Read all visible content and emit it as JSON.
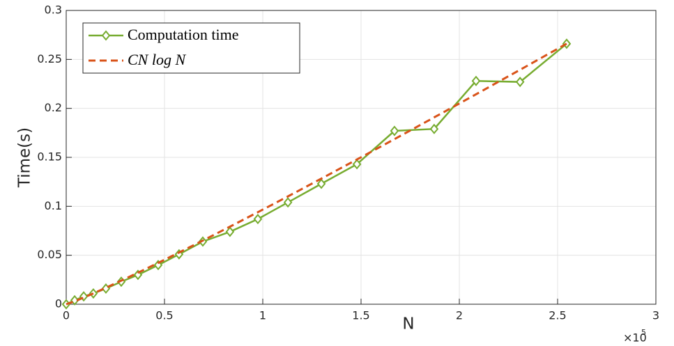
{
  "chart_data": {
    "type": "line",
    "x_label": "N",
    "y_label": "Time(s)",
    "x_scale_label": "×10",
    "x_scale_exponent": 5,
    "x": [
      0,
      0.043,
      0.089,
      0.138,
      0.202,
      0.28,
      0.365,
      0.468,
      0.574,
      0.695,
      0.833,
      0.975,
      1.128,
      1.298,
      1.479,
      1.67,
      1.872,
      2.085,
      2.309,
      2.546
    ],
    "series": [
      {
        "name": "Computation time",
        "color": "#77ac30",
        "marker": "diamond",
        "values": [
          0,
          0.004,
          0.008,
          0.011,
          0.016,
          0.023,
          0.03,
          0.04,
          0.051,
          0.064,
          0.074,
          0.087,
          0.104,
          0.123,
          0.143,
          0.177,
          0.179,
          0.228,
          0.227,
          0.266
        ]
      },
      {
        "name": "CN log N",
        "color": "#d95319",
        "dashed": true,
        "values": [
          0,
          0.003,
          0.0068,
          0.011,
          0.0168,
          0.0241,
          0.0322,
          0.0422,
          0.0528,
          0.065,
          0.0792,
          0.094,
          0.1101,
          0.1283,
          0.1478,
          0.1686,
          0.1908,
          0.2144,
          0.2394,
          0.266
        ]
      }
    ],
    "xlim": [
      0,
      3
    ],
    "xticks": [
      0,
      0.5,
      1,
      1.5,
      2,
      2.5,
      3
    ],
    "ylim": [
      0,
      0.3
    ],
    "yticks": [
      0,
      0.05,
      0.1,
      0.15,
      0.2,
      0.25,
      0.3
    ],
    "grid": true,
    "legend": "upper-left"
  }
}
